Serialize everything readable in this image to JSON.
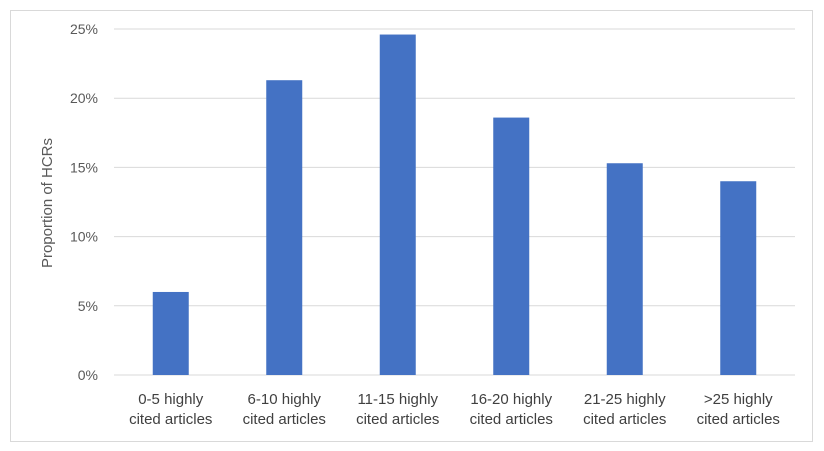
{
  "chart_data": {
    "type": "bar",
    "title": "",
    "xlabel": "",
    "ylabel": "Proportion of HCRs",
    "categories": [
      [
        "0-5 highly",
        "cited articles"
      ],
      [
        "6-10 highly",
        "cited articles"
      ],
      [
        "11-15 highly",
        "cited articles"
      ],
      [
        "16-20 highly",
        "cited articles"
      ],
      [
        "21-25 highly",
        "cited articles"
      ],
      [
        ">25 highly",
        "cited articles"
      ]
    ],
    "values": [
      6.0,
      21.3,
      24.6,
      18.6,
      15.3,
      14.0
    ],
    "ylim": [
      0,
      25
    ],
    "yticks": [
      0,
      5,
      10,
      15,
      20,
      25
    ],
    "ytick_labels": [
      "0%",
      "5%",
      "10%",
      "15%",
      "20%",
      "25%"
    ],
    "grid": true,
    "bar_color": "#4472c4",
    "grid_color": "#d9d9d9"
  }
}
